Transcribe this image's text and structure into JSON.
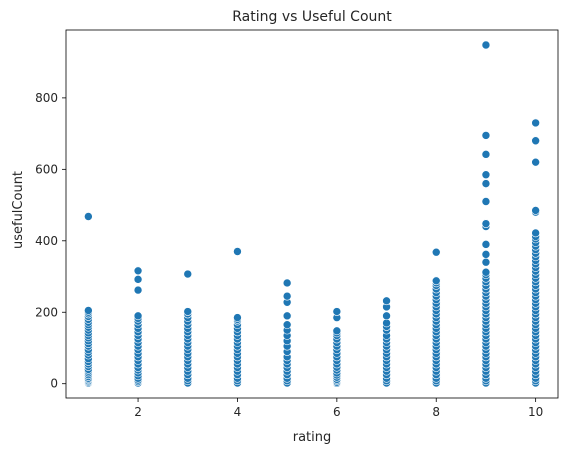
{
  "chart_data": {
    "type": "scatter",
    "title": "Rating vs Useful Count",
    "xlabel": "rating",
    "ylabel": "usefulCount",
    "xlim": [
      0.55,
      10.45
    ],
    "ylim": [
      -40,
      990
    ],
    "xticks": [
      2,
      4,
      6,
      8,
      10
    ],
    "yticks": [
      0,
      200,
      400,
      600,
      800
    ],
    "grid": false,
    "legend": "none",
    "point_color": "#1f77b4",
    "series": [
      {
        "points": [
          [
            1,
            2
          ],
          [
            1,
            5
          ],
          [
            1,
            8
          ],
          [
            1,
            12
          ],
          [
            1,
            15
          ],
          [
            1,
            20
          ],
          [
            1,
            25
          ],
          [
            1,
            30
          ],
          [
            1,
            35
          ],
          [
            1,
            40
          ],
          [
            1,
            48
          ],
          [
            1,
            55
          ],
          [
            1,
            62
          ],
          [
            1,
            70
          ],
          [
            1,
            80
          ],
          [
            1,
            88
          ],
          [
            1,
            95
          ],
          [
            1,
            105
          ],
          [
            1,
            112
          ],
          [
            1,
            120
          ],
          [
            1,
            128
          ],
          [
            1,
            135
          ],
          [
            1,
            142
          ],
          [
            1,
            150
          ],
          [
            1,
            158
          ],
          [
            1,
            165
          ],
          [
            1,
            172
          ],
          [
            1,
            180
          ],
          [
            1,
            188
          ],
          [
            1,
            195
          ],
          [
            1,
            200
          ],
          [
            1,
            205
          ],
          [
            1,
            468
          ],
          [
            2,
            2
          ],
          [
            2,
            6
          ],
          [
            2,
            10
          ],
          [
            2,
            15
          ],
          [
            2,
            22
          ],
          [
            2,
            30
          ],
          [
            2,
            38
          ],
          [
            2,
            45
          ],
          [
            2,
            55
          ],
          [
            2,
            65
          ],
          [
            2,
            75
          ],
          [
            2,
            85
          ],
          [
            2,
            95
          ],
          [
            2,
            105
          ],
          [
            2,
            115
          ],
          [
            2,
            125
          ],
          [
            2,
            135
          ],
          [
            2,
            145
          ],
          [
            2,
            155
          ],
          [
            2,
            165
          ],
          [
            2,
            175
          ],
          [
            2,
            183
          ],
          [
            2,
            190
          ],
          [
            2,
            262
          ],
          [
            2,
            292
          ],
          [
            2,
            316
          ],
          [
            3,
            2
          ],
          [
            3,
            8
          ],
          [
            3,
            15
          ],
          [
            3,
            25
          ],
          [
            3,
            35
          ],
          [
            3,
            45
          ],
          [
            3,
            55
          ],
          [
            3,
            65
          ],
          [
            3,
            75
          ],
          [
            3,
            85
          ],
          [
            3,
            95
          ],
          [
            3,
            105
          ],
          [
            3,
            115
          ],
          [
            3,
            125
          ],
          [
            3,
            135
          ],
          [
            3,
            145
          ],
          [
            3,
            155
          ],
          [
            3,
            165
          ],
          [
            3,
            175
          ],
          [
            3,
            185
          ],
          [
            3,
            195
          ],
          [
            3,
            202
          ],
          [
            3,
            307
          ],
          [
            4,
            2
          ],
          [
            4,
            8
          ],
          [
            4,
            15
          ],
          [
            4,
            25
          ],
          [
            4,
            35
          ],
          [
            4,
            45
          ],
          [
            4,
            55
          ],
          [
            4,
            65
          ],
          [
            4,
            75
          ],
          [
            4,
            85
          ],
          [
            4,
            95
          ],
          [
            4,
            105
          ],
          [
            4,
            115
          ],
          [
            4,
            125
          ],
          [
            4,
            135
          ],
          [
            4,
            145
          ],
          [
            4,
            155
          ],
          [
            4,
            165
          ],
          [
            4,
            175
          ],
          [
            4,
            180
          ],
          [
            4,
            185
          ],
          [
            4,
            370
          ],
          [
            5,
            2
          ],
          [
            5,
            8
          ],
          [
            5,
            15
          ],
          [
            5,
            25
          ],
          [
            5,
            35
          ],
          [
            5,
            45
          ],
          [
            5,
            55
          ],
          [
            5,
            65
          ],
          [
            5,
            75
          ],
          [
            5,
            90
          ],
          [
            5,
            105
          ],
          [
            5,
            120
          ],
          [
            5,
            135
          ],
          [
            5,
            150
          ],
          [
            5,
            165
          ],
          [
            5,
            190
          ],
          [
            5,
            228
          ],
          [
            5,
            245
          ],
          [
            5,
            282
          ],
          [
            6,
            1
          ],
          [
            6,
            4
          ],
          [
            6,
            8
          ],
          [
            6,
            12
          ],
          [
            6,
            18
          ],
          [
            6,
            24
          ],
          [
            6,
            30
          ],
          [
            6,
            38
          ],
          [
            6,
            46
          ],
          [
            6,
            55
          ],
          [
            6,
            65
          ],
          [
            6,
            75
          ],
          [
            6,
            85
          ],
          [
            6,
            95
          ],
          [
            6,
            105
          ],
          [
            6,
            115
          ],
          [
            6,
            125
          ],
          [
            6,
            135
          ],
          [
            6,
            142
          ],
          [
            6,
            148
          ],
          [
            6,
            185
          ],
          [
            6,
            202
          ],
          [
            7,
            2
          ],
          [
            7,
            8
          ],
          [
            7,
            15
          ],
          [
            7,
            25
          ],
          [
            7,
            35
          ],
          [
            7,
            45
          ],
          [
            7,
            55
          ],
          [
            7,
            65
          ],
          [
            7,
            75
          ],
          [
            7,
            85
          ],
          [
            7,
            95
          ],
          [
            7,
            105
          ],
          [
            7,
            115
          ],
          [
            7,
            125
          ],
          [
            7,
            135
          ],
          [
            7,
            150
          ],
          [
            7,
            160
          ],
          [
            7,
            170
          ],
          [
            7,
            190
          ],
          [
            7,
            215
          ],
          [
            7,
            232
          ],
          [
            8,
            2
          ],
          [
            8,
            8
          ],
          [
            8,
            15
          ],
          [
            8,
            25
          ],
          [
            8,
            35
          ],
          [
            8,
            45
          ],
          [
            8,
            55
          ],
          [
            8,
            65
          ],
          [
            8,
            75
          ],
          [
            8,
            85
          ],
          [
            8,
            95
          ],
          [
            8,
            105
          ],
          [
            8,
            115
          ],
          [
            8,
            125
          ],
          [
            8,
            135
          ],
          [
            8,
            145
          ],
          [
            8,
            155
          ],
          [
            8,
            165
          ],
          [
            8,
            175
          ],
          [
            8,
            185
          ],
          [
            8,
            195
          ],
          [
            8,
            205
          ],
          [
            8,
            215
          ],
          [
            8,
            225
          ],
          [
            8,
            235
          ],
          [
            8,
            245
          ],
          [
            8,
            255
          ],
          [
            8,
            265
          ],
          [
            8,
            275
          ],
          [
            8,
            282
          ],
          [
            8,
            288
          ],
          [
            8,
            368
          ],
          [
            9,
            2
          ],
          [
            9,
            8
          ],
          [
            9,
            15
          ],
          [
            9,
            25
          ],
          [
            9,
            35
          ],
          [
            9,
            45
          ],
          [
            9,
            55
          ],
          [
            9,
            65
          ],
          [
            9,
            75
          ],
          [
            9,
            85
          ],
          [
            9,
            95
          ],
          [
            9,
            105
          ],
          [
            9,
            115
          ],
          [
            9,
            125
          ],
          [
            9,
            135
          ],
          [
            9,
            145
          ],
          [
            9,
            155
          ],
          [
            9,
            165
          ],
          [
            9,
            175
          ],
          [
            9,
            185
          ],
          [
            9,
            195
          ],
          [
            9,
            205
          ],
          [
            9,
            215
          ],
          [
            9,
            225
          ],
          [
            9,
            235
          ],
          [
            9,
            245
          ],
          [
            9,
            255
          ],
          [
            9,
            265
          ],
          [
            9,
            275
          ],
          [
            9,
            285
          ],
          [
            9,
            295
          ],
          [
            9,
            305
          ],
          [
            9,
            312
          ],
          [
            9,
            340
          ],
          [
            9,
            362
          ],
          [
            9,
            390
          ],
          [
            9,
            440
          ],
          [
            9,
            448
          ],
          [
            9,
            510
          ],
          [
            9,
            560
          ],
          [
            9,
            585
          ],
          [
            9,
            642
          ],
          [
            9,
            695
          ],
          [
            9,
            948
          ],
          [
            10,
            2
          ],
          [
            10,
            8
          ],
          [
            10,
            15
          ],
          [
            10,
            25
          ],
          [
            10,
            35
          ],
          [
            10,
            45
          ],
          [
            10,
            55
          ],
          [
            10,
            65
          ],
          [
            10,
            75
          ],
          [
            10,
            85
          ],
          [
            10,
            95
          ],
          [
            10,
            105
          ],
          [
            10,
            115
          ],
          [
            10,
            125
          ],
          [
            10,
            135
          ],
          [
            10,
            145
          ],
          [
            10,
            155
          ],
          [
            10,
            165
          ],
          [
            10,
            175
          ],
          [
            10,
            185
          ],
          [
            10,
            195
          ],
          [
            10,
            205
          ],
          [
            10,
            215
          ],
          [
            10,
            225
          ],
          [
            10,
            235
          ],
          [
            10,
            245
          ],
          [
            10,
            255
          ],
          [
            10,
            265
          ],
          [
            10,
            275
          ],
          [
            10,
            285
          ],
          [
            10,
            295
          ],
          [
            10,
            305
          ],
          [
            10,
            315
          ],
          [
            10,
            325
          ],
          [
            10,
            335
          ],
          [
            10,
            345
          ],
          [
            10,
            355
          ],
          [
            10,
            365
          ],
          [
            10,
            375
          ],
          [
            10,
            385
          ],
          [
            10,
            395
          ],
          [
            10,
            405
          ],
          [
            10,
            412
          ],
          [
            10,
            422
          ],
          [
            10,
            480
          ],
          [
            10,
            485
          ],
          [
            10,
            620
          ],
          [
            10,
            680
          ],
          [
            10,
            730
          ]
        ]
      }
    ]
  }
}
